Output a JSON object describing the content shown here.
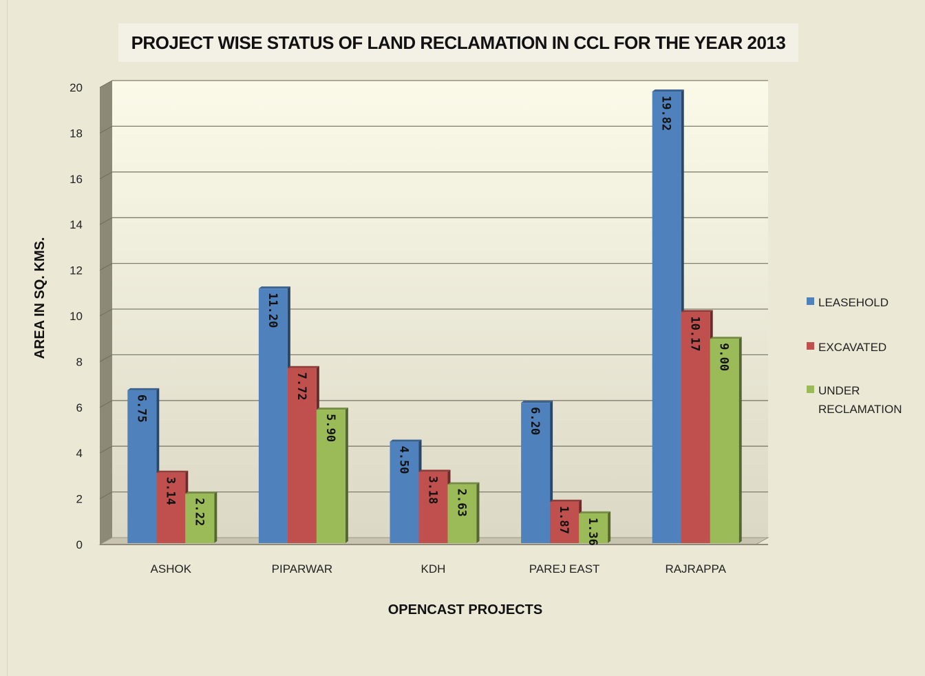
{
  "chart_data": {
    "type": "bar",
    "title": "PROJECT WISE STATUS OF LAND RECLAMATION IN CCL FOR THE YEAR 2013",
    "xlabel": "OPENCAST PROJECTS",
    "ylabel": "AREA IN SQ. KMS.",
    "ylim": [
      0,
      20
    ],
    "yticks": [
      "0",
      "2",
      "4",
      "6",
      "8",
      "10",
      "12",
      "14",
      "16",
      "18",
      "20"
    ],
    "categories": [
      "ASHOK",
      "PIPARWAR",
      "KDH",
      "PAREJ EAST",
      "RAJRAPPA"
    ],
    "series": [
      {
        "name": "LEASEHOLD",
        "color": "#4f81bd",
        "values": [
          6.75,
          11.2,
          4.5,
          6.2,
          19.82
        ],
        "labels": [
          "6.75",
          "11.20",
          "4.50",
          "6.20",
          "19.82"
        ]
      },
      {
        "name": "EXCAVATED",
        "color": "#c0504d",
        "values": [
          3.14,
          7.72,
          3.18,
          1.87,
          10.17
        ],
        "labels": [
          "3.14",
          "7.72",
          "3.18",
          "1.87",
          "10.17"
        ]
      },
      {
        "name": "UNDER RECLAMATION",
        "color": "#9bbb59",
        "values": [
          2.22,
          5.9,
          2.63,
          1.36,
          9.0
        ],
        "labels": [
          "2.22",
          "5.90",
          "2.63",
          "1.36",
          "9.00"
        ]
      }
    ],
    "legend": {
      "position": "right",
      "items": [
        "LEASEHOLD",
        "EXCAVATED",
        "UNDER RECLAMATION"
      ]
    },
    "grid": true
  }
}
